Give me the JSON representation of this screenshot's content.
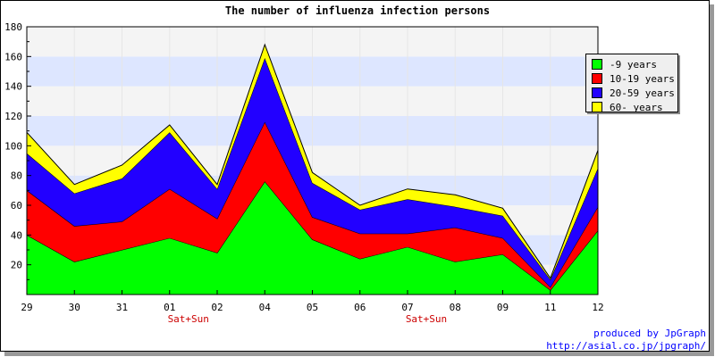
{
  "chart_data": {
    "type": "area",
    "stacked": true,
    "title": "The number of influenza infection persons",
    "categories": [
      "29",
      "30",
      "31",
      "01",
      "02",
      "04",
      "05",
      "06",
      "07",
      "08",
      "09",
      "11",
      "12"
    ],
    "day_labels": [
      "",
      "",
      "",
      "Sat+Sun",
      "",
      "",
      "",
      "",
      "Sat+Sun",
      "",
      "",
      "",
      ""
    ],
    "series": [
      {
        "name": "-9 years",
        "color": "#00ff00",
        "values": [
          40,
          22,
          30,
          38,
          28,
          76,
          37,
          24,
          32,
          22,
          27,
          3,
          43
        ]
      },
      {
        "name": "10-19 years",
        "color": "#ff0000",
        "values": [
          30,
          24,
          19,
          33,
          23,
          40,
          15,
          17,
          9,
          23,
          11,
          2,
          16
        ]
      },
      {
        "name": "20-59 years",
        "color": "#2200ff",
        "values": [
          25,
          22,
          29,
          38,
          20,
          43,
          23,
          16,
          23,
          14,
          15,
          5,
          26
        ]
      },
      {
        "name": "60- years",
        "color": "#ffff00",
        "values": [
          14,
          6,
          9,
          5,
          3,
          9,
          7,
          3,
          7,
          8,
          5,
          1,
          12
        ]
      }
    ],
    "ylim": [
      0,
      180
    ],
    "yticks": [
      20,
      40,
      60,
      80,
      100,
      120,
      140,
      160,
      180
    ],
    "grid": "horizontal bands",
    "band_colors": [
      "#f4f4f4",
      "#dde6ff"
    ],
    "legend_position": "right"
  },
  "credit": {
    "line1": "produced by JpGraph",
    "line2": "http://asial.co.jp/jpgraph/"
  }
}
